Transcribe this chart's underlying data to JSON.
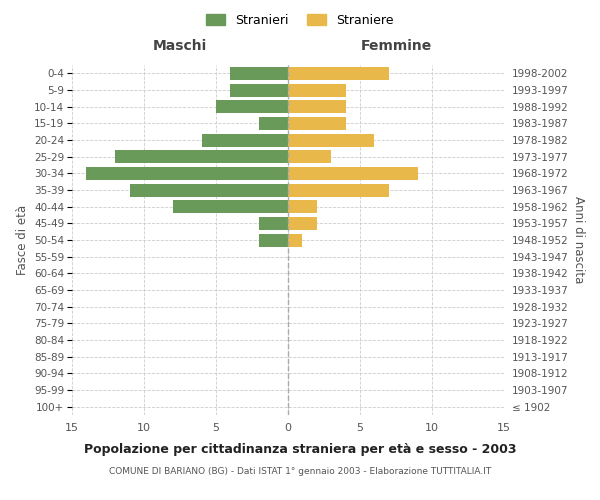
{
  "age_groups": [
    "100+",
    "95-99",
    "90-94",
    "85-89",
    "80-84",
    "75-79",
    "70-74",
    "65-69",
    "60-64",
    "55-59",
    "50-54",
    "45-49",
    "40-44",
    "35-39",
    "30-34",
    "25-29",
    "20-24",
    "15-19",
    "10-14",
    "5-9",
    "0-4"
  ],
  "birth_years": [
    "≤ 1902",
    "1903-1907",
    "1908-1912",
    "1913-1917",
    "1918-1922",
    "1923-1927",
    "1928-1932",
    "1933-1937",
    "1938-1942",
    "1943-1947",
    "1948-1952",
    "1953-1957",
    "1958-1962",
    "1963-1967",
    "1968-1972",
    "1973-1977",
    "1978-1982",
    "1983-1987",
    "1988-1992",
    "1993-1997",
    "1998-2002"
  ],
  "maschi": [
    0,
    0,
    0,
    0,
    0,
    0,
    0,
    0,
    0,
    0,
    2,
    2,
    8,
    11,
    14,
    12,
    6,
    2,
    5,
    4,
    4
  ],
  "femmine": [
    0,
    0,
    0,
    0,
    0,
    0,
    0,
    0,
    0,
    0,
    1,
    2,
    2,
    7,
    9,
    3,
    6,
    4,
    4,
    4,
    7
  ],
  "color_maschi": "#6a9a5a",
  "color_femmine": "#e8b84b",
  "title": "Popolazione per cittadinanza straniera per età e sesso - 2003",
  "subtitle": "COMUNE DI BARIANO (BG) - Dati ISTAT 1° gennaio 2003 - Elaborazione TUTTITALIA.IT",
  "xlabel_left": "Maschi",
  "xlabel_right": "Femmine",
  "ylabel_left": "Fasce di età",
  "ylabel_right": "Anni di nascita",
  "legend_maschi": "Stranieri",
  "legend_femmine": "Straniere",
  "xlim": 15,
  "background_color": "#ffffff",
  "grid_color": "#cccccc"
}
